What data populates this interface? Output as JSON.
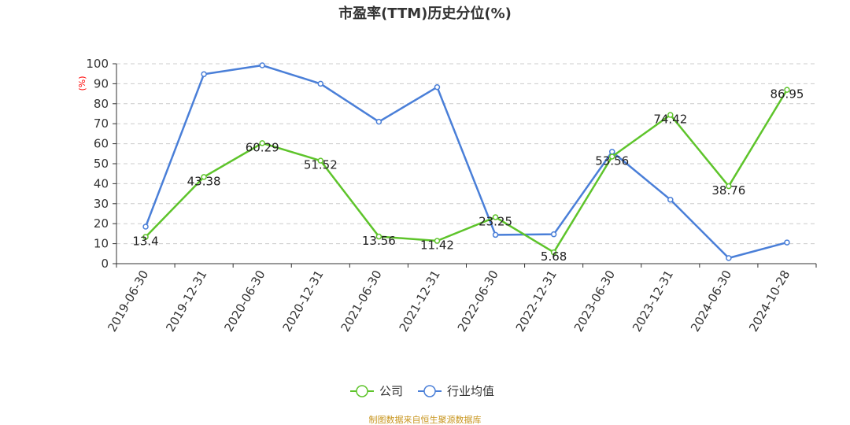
{
  "chart_data": {
    "type": "line",
    "title": "市盈率(TTM)历史分位(%)",
    "xlabel": "",
    "ylabel": "(%)",
    "ylim": [
      0,
      100
    ],
    "yticks": [
      0,
      10,
      20,
      30,
      40,
      50,
      60,
      70,
      80,
      90,
      100
    ],
    "categories": [
      "2019-06-30",
      "2019-12-31",
      "2020-06-30",
      "2020-12-31",
      "2021-06-30",
      "2021-12-31",
      "2022-06-30",
      "2022-12-31",
      "2023-06-30",
      "2023-12-31",
      "2024-06-30",
      "2024-10-28"
    ],
    "grid": "horizontal-dashed",
    "legend_position": "bottom",
    "series": [
      {
        "name": "公司",
        "color": "#5ec42b",
        "values": [
          13.4,
          43.38,
          60.29,
          51.52,
          13.56,
          11.42,
          23.25,
          5.68,
          53.56,
          74.42,
          38.76,
          86.95
        ],
        "labels": [
          "13.4",
          "43.38",
          "60.29",
          "51.52",
          "13.56",
          "11.42",
          "23.25",
          "5.68",
          "53.56",
          "74.42",
          "38.76",
          "86.95"
        ]
      },
      {
        "name": "行业均值",
        "color": "#4a7fd8",
        "values": [
          18.5,
          94.8,
          99.2,
          90.0,
          71.0,
          88.3,
          14.4,
          14.7,
          56.0,
          32.0,
          2.8,
          10.6
        ]
      }
    ],
    "source": "制图数据来自恒生聚源数据库"
  }
}
